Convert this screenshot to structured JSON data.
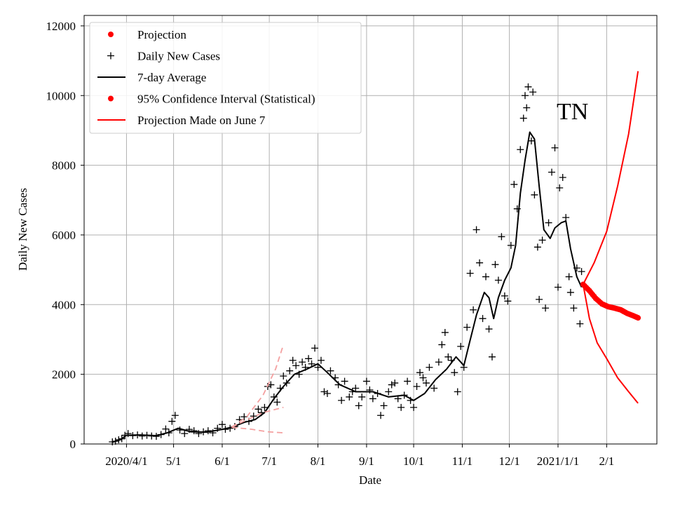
{
  "chart_data": {
    "type": "line",
    "title": "",
    "annotation": "TN",
    "xlabel": "Date",
    "ylabel": "Daily New Cases",
    "grid": true,
    "legend_position": "top-left",
    "xlim": [
      "2020-03-05",
      "2021-03-05"
    ],
    "ylim": [
      0,
      12300
    ],
    "x_ticks": [
      {
        "date": "2020-04-01",
        "label": "2020/4/1"
      },
      {
        "date": "2020-05-01",
        "label": "5/1"
      },
      {
        "date": "2020-06-01",
        "label": "6/1"
      },
      {
        "date": "2020-07-01",
        "label": "7/1"
      },
      {
        "date": "2020-08-01",
        "label": "8/1"
      },
      {
        "date": "2020-09-01",
        "label": "9/1"
      },
      {
        "date": "2020-10-01",
        "label": "10/1"
      },
      {
        "date": "2020-11-01",
        "label": "11/1"
      },
      {
        "date": "2020-12-01",
        "label": "12/1"
      },
      {
        "date": "2021-01-01",
        "label": "2021/1/1"
      },
      {
        "date": "2021-02-01",
        "label": "2/1"
      }
    ],
    "y_ticks": [
      0,
      2000,
      4000,
      6000,
      8000,
      10000,
      12000
    ],
    "legend": [
      {
        "label": "Projection",
        "marker": "dot",
        "color": "#ff0000"
      },
      {
        "label": "Daily New Cases",
        "marker": "plus",
        "color": "#000000"
      },
      {
        "label": "7-day Average",
        "marker": "line",
        "color": "#000000"
      },
      {
        "label": "95% Confidence Interval (Statistical)",
        "marker": "dot",
        "color": "#ff0000"
      },
      {
        "label": "Projection Made on June 7",
        "marker": "line",
        "color": "#ff0000"
      }
    ],
    "series": [
      {
        "name": "Daily New Cases",
        "style": "plus",
        "color": "#000000",
        "points": [
          [
            "2020-03-23",
            60
          ],
          [
            "2020-03-25",
            80
          ],
          [
            "2020-03-27",
            120
          ],
          [
            "2020-03-29",
            150
          ],
          [
            "2020-03-31",
            250
          ],
          [
            "2020-04-02",
            300
          ],
          [
            "2020-04-05",
            240
          ],
          [
            "2020-04-08",
            260
          ],
          [
            "2020-04-11",
            230
          ],
          [
            "2020-04-14",
            250
          ],
          [
            "2020-04-17",
            230
          ],
          [
            "2020-04-20",
            220
          ],
          [
            "2020-04-23",
            270
          ],
          [
            "2020-04-26",
            430
          ],
          [
            "2020-04-28",
            320
          ],
          [
            "2020-04-30",
            650
          ],
          [
            "2020-05-02",
            820
          ],
          [
            "2020-05-05",
            400
          ],
          [
            "2020-05-08",
            300
          ],
          [
            "2020-05-11",
            420
          ],
          [
            "2020-05-14",
            380
          ],
          [
            "2020-05-17",
            300
          ],
          [
            "2020-05-20",
            350
          ],
          [
            "2020-05-23",
            380
          ],
          [
            "2020-05-26",
            320
          ],
          [
            "2020-05-29",
            450
          ],
          [
            "2020-06-01",
            560
          ],
          [
            "2020-06-03",
            420
          ],
          [
            "2020-06-06",
            450
          ],
          [
            "2020-06-09",
            500
          ],
          [
            "2020-06-12",
            700
          ],
          [
            "2020-06-15",
            780
          ],
          [
            "2020-06-18",
            650
          ],
          [
            "2020-06-21",
            800
          ],
          [
            "2020-06-24",
            1000
          ],
          [
            "2020-06-26",
            900
          ],
          [
            "2020-06-28",
            1050
          ],
          [
            "2020-06-30",
            1650
          ],
          [
            "2020-07-02",
            1700
          ],
          [
            "2020-07-04",
            1350
          ],
          [
            "2020-07-06",
            1200
          ],
          [
            "2020-07-08",
            1600
          ],
          [
            "2020-07-10",
            1950
          ],
          [
            "2020-07-12",
            1750
          ],
          [
            "2020-07-14",
            2100
          ],
          [
            "2020-07-16",
            2400
          ],
          [
            "2020-07-18",
            2250
          ],
          [
            "2020-07-20",
            2000
          ],
          [
            "2020-07-22",
            2350
          ],
          [
            "2020-07-24",
            2200
          ],
          [
            "2020-07-26",
            2450
          ],
          [
            "2020-07-28",
            2300
          ],
          [
            "2020-07-30",
            2750
          ],
          [
            "2020-08-01",
            2200
          ],
          [
            "2020-08-03",
            2400
          ],
          [
            "2020-08-05",
            1500
          ],
          [
            "2020-08-07",
            1450
          ],
          [
            "2020-08-09",
            2100
          ],
          [
            "2020-08-12",
            1900
          ],
          [
            "2020-08-14",
            1700
          ],
          [
            "2020-08-16",
            1250
          ],
          [
            "2020-08-18",
            1800
          ],
          [
            "2020-08-21",
            1350
          ],
          [
            "2020-08-23",
            1500
          ],
          [
            "2020-08-25",
            1600
          ],
          [
            "2020-08-27",
            1100
          ],
          [
            "2020-08-29",
            1350
          ],
          [
            "2020-09-01",
            1800
          ],
          [
            "2020-09-03",
            1550
          ],
          [
            "2020-09-05",
            1300
          ],
          [
            "2020-09-08",
            1450
          ],
          [
            "2020-09-10",
            820
          ],
          [
            "2020-09-12",
            1100
          ],
          [
            "2020-09-15",
            1500
          ],
          [
            "2020-09-17",
            1700
          ],
          [
            "2020-09-19",
            1750
          ],
          [
            "2020-09-21",
            1300
          ],
          [
            "2020-09-23",
            1050
          ],
          [
            "2020-09-25",
            1400
          ],
          [
            "2020-09-27",
            1800
          ],
          [
            "2020-09-29",
            1250
          ],
          [
            "2020-10-01",
            1050
          ],
          [
            "2020-10-03",
            1650
          ],
          [
            "2020-10-05",
            2050
          ],
          [
            "2020-10-07",
            1900
          ],
          [
            "2020-10-09",
            1750
          ],
          [
            "2020-10-11",
            2200
          ],
          [
            "2020-10-14",
            1600
          ],
          [
            "2020-10-17",
            2350
          ],
          [
            "2020-10-19",
            2850
          ],
          [
            "2020-10-21",
            3200
          ],
          [
            "2020-10-23",
            2500
          ],
          [
            "2020-10-25",
            2400
          ],
          [
            "2020-10-27",
            2050
          ],
          [
            "2020-10-29",
            1500
          ],
          [
            "2020-10-31",
            2800
          ],
          [
            "2020-11-02",
            2200
          ],
          [
            "2020-11-04",
            3350
          ],
          [
            "2020-11-06",
            4900
          ],
          [
            "2020-11-08",
            3850
          ],
          [
            "2020-11-10",
            6150
          ],
          [
            "2020-11-12",
            5200
          ],
          [
            "2020-11-14",
            3600
          ],
          [
            "2020-11-16",
            4800
          ],
          [
            "2020-11-18",
            3300
          ],
          [
            "2020-11-20",
            2500
          ],
          [
            "2020-11-22",
            5150
          ],
          [
            "2020-11-24",
            4700
          ],
          [
            "2020-11-26",
            5950
          ],
          [
            "2020-11-28",
            4250
          ],
          [
            "2020-11-30",
            4100
          ],
          [
            "2020-12-02",
            5700
          ],
          [
            "2020-12-04",
            7450
          ],
          [
            "2020-12-06",
            6750
          ],
          [
            "2020-12-08",
            8450
          ],
          [
            "2020-12-10",
            9350
          ],
          [
            "2020-12-11",
            10000
          ],
          [
            "2020-12-12",
            9650
          ],
          [
            "2020-12-13",
            10250
          ],
          [
            "2020-12-15",
            8700
          ],
          [
            "2020-12-16",
            10100
          ],
          [
            "2020-12-17",
            7150
          ],
          [
            "2020-12-19",
            5650
          ],
          [
            "2020-12-20",
            4150
          ],
          [
            "2020-12-22",
            5850
          ],
          [
            "2020-12-24",
            3900
          ],
          [
            "2020-12-26",
            6350
          ],
          [
            "2020-12-28",
            7800
          ],
          [
            "2020-12-30",
            8500
          ],
          [
            "2021-01-01",
            4500
          ],
          [
            "2021-01-02",
            7350
          ],
          [
            "2021-01-04",
            7650
          ],
          [
            "2021-01-06",
            6500
          ],
          [
            "2021-01-08",
            4800
          ],
          [
            "2021-01-09",
            4350
          ],
          [
            "2021-01-11",
            3900
          ],
          [
            "2021-01-13",
            5050
          ],
          [
            "2021-01-15",
            3450
          ],
          [
            "2021-01-16",
            4950
          ]
        ]
      },
      {
        "name": "7-day Average",
        "style": "line",
        "color": "#000000",
        "points": [
          [
            "2020-03-23",
            50
          ],
          [
            "2020-03-28",
            120
          ],
          [
            "2020-04-01",
            250
          ],
          [
            "2020-04-10",
            260
          ],
          [
            "2020-04-20",
            240
          ],
          [
            "2020-04-27",
            320
          ],
          [
            "2020-05-04",
            450
          ],
          [
            "2020-05-12",
            350
          ],
          [
            "2020-05-22",
            340
          ],
          [
            "2020-06-01",
            420
          ],
          [
            "2020-06-07",
            480
          ],
          [
            "2020-06-15",
            620
          ],
          [
            "2020-06-22",
            700
          ],
          [
            "2020-06-28",
            900
          ],
          [
            "2020-07-04",
            1300
          ],
          [
            "2020-07-10",
            1650
          ],
          [
            "2020-07-17",
            2000
          ],
          [
            "2020-07-25",
            2150
          ],
          [
            "2020-08-01",
            2300
          ],
          [
            "2020-08-07",
            2050
          ],
          [
            "2020-08-15",
            1700
          ],
          [
            "2020-08-25",
            1500
          ],
          [
            "2020-09-05",
            1500
          ],
          [
            "2020-09-15",
            1350
          ],
          [
            "2020-09-25",
            1400
          ],
          [
            "2020-10-01",
            1250
          ],
          [
            "2020-10-08",
            1450
          ],
          [
            "2020-10-15",
            1850
          ],
          [
            "2020-10-22",
            2150
          ],
          [
            "2020-10-28",
            2500
          ],
          [
            "2020-11-02",
            2250
          ],
          [
            "2020-11-05",
            2800
          ],
          [
            "2020-11-10",
            3700
          ],
          [
            "2020-11-15",
            4350
          ],
          [
            "2020-11-18",
            4200
          ],
          [
            "2020-11-21",
            3600
          ],
          [
            "2020-11-24",
            4200
          ],
          [
            "2020-11-28",
            4700
          ],
          [
            "2020-12-02",
            5050
          ],
          [
            "2020-12-05",
            5700
          ],
          [
            "2020-12-08",
            7200
          ],
          [
            "2020-12-11",
            8150
          ],
          [
            "2020-12-14",
            8950
          ],
          [
            "2020-12-17",
            8750
          ],
          [
            "2020-12-20",
            7400
          ],
          [
            "2020-12-23",
            6150
          ],
          [
            "2020-12-27",
            5900
          ],
          [
            "2020-12-30",
            6200
          ],
          [
            "2021-01-03",
            6350
          ],
          [
            "2021-01-06",
            6400
          ],
          [
            "2021-01-09",
            5600
          ],
          [
            "2021-01-13",
            4800
          ],
          [
            "2021-01-16",
            4500
          ]
        ]
      },
      {
        "name": "Projection",
        "style": "dots",
        "color": "#ff0000",
        "points": [
          [
            "2021-01-17",
            4580
          ],
          [
            "2021-01-21",
            4400
          ],
          [
            "2021-01-25",
            4180
          ],
          [
            "2021-01-29",
            4020
          ],
          [
            "2021-02-02",
            3940
          ],
          [
            "2021-02-06",
            3900
          ],
          [
            "2021-02-10",
            3850
          ],
          [
            "2021-02-14",
            3750
          ],
          [
            "2021-02-18",
            3680
          ],
          [
            "2021-02-21",
            3620
          ]
        ]
      },
      {
        "name": "95% Confidence Interval (Statistical)",
        "style": "line",
        "color": "#ff0000",
        "points": [
          [
            "2021-01-17",
            4580
          ],
          [
            "2021-01-24",
            5200
          ],
          [
            "2021-02-01",
            6100
          ],
          [
            "2021-02-08",
            7400
          ],
          [
            "2021-02-15",
            8900
          ],
          [
            "2021-02-21",
            10700
          ]
        ]
      },
      {
        "name": "95% Confidence Interval (Statistical)",
        "style": "line",
        "color": "#ff0000",
        "points": [
          [
            "2021-01-17",
            4580
          ],
          [
            "2021-01-21",
            3600
          ],
          [
            "2021-01-26",
            2900
          ],
          [
            "2021-02-01",
            2450
          ],
          [
            "2021-02-08",
            1900
          ],
          [
            "2021-02-15",
            1500
          ],
          [
            "2021-02-21",
            1170
          ]
        ]
      },
      {
        "name": "Projection Made on June 7",
        "style": "dashed",
        "color": "#f4a0a0",
        "points": [
          [
            "2020-06-07",
            480
          ],
          [
            "2020-06-17",
            800
          ],
          [
            "2020-06-27",
            1400
          ],
          [
            "2020-07-05",
            2150
          ],
          [
            "2020-07-10",
            2850
          ]
        ]
      },
      {
        "name": "Projection Made on June 7",
        "style": "dashed",
        "color": "#f4a0a0",
        "points": [
          [
            "2020-06-07",
            480
          ],
          [
            "2020-06-17",
            700
          ],
          [
            "2020-06-27",
            900
          ],
          [
            "2020-07-10",
            1050
          ]
        ]
      },
      {
        "name": "Projection Made on June 7",
        "style": "dashed",
        "color": "#f4a0a0",
        "points": [
          [
            "2020-06-07",
            480
          ],
          [
            "2020-06-20",
            420
          ],
          [
            "2020-06-30",
            350
          ],
          [
            "2020-07-10",
            320
          ]
        ]
      }
    ]
  }
}
